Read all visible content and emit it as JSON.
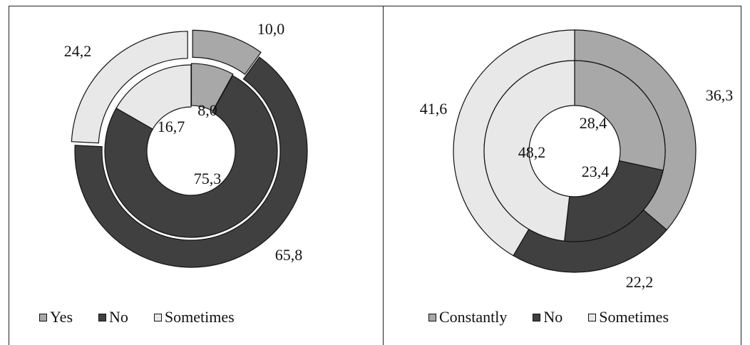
{
  "chart_data": [
    {
      "type": "donut",
      "rings": [
        {
          "name": "",
          "values": [
            10.0,
            65.8,
            24.2
          ],
          "labels": [
            "10,0",
            "65,8",
            "24,2"
          ]
        },
        {
          "name": "",
          "values": [
            8.0,
            75.3,
            16.7
          ],
          "labels": [
            "8,0",
            "75,3",
            "16,7"
          ]
        }
      ],
      "legend": [
        "Yes",
        "No",
        "Sometimes"
      ],
      "colors": [
        "#a8a8a8",
        "#404040",
        "#e8e8e8"
      ],
      "legend_position": "bottom"
    },
    {
      "type": "donut",
      "rings": [
        {
          "name": "",
          "values": [
            36.3,
            22.2,
            41.6
          ],
          "labels": [
            "36,3",
            "22,2",
            "41,6"
          ]
        },
        {
          "name": "",
          "values": [
            28.4,
            23.4,
            48.2
          ],
          "labels": [
            "28,4",
            "23,4",
            "48,2"
          ]
        }
      ],
      "legend": [
        "Constantly",
        "No",
        "Sometimes"
      ],
      "colors": [
        "#a8a8a8",
        "#404040",
        "#e8e8e8"
      ],
      "legend_position": "bottom"
    }
  ]
}
